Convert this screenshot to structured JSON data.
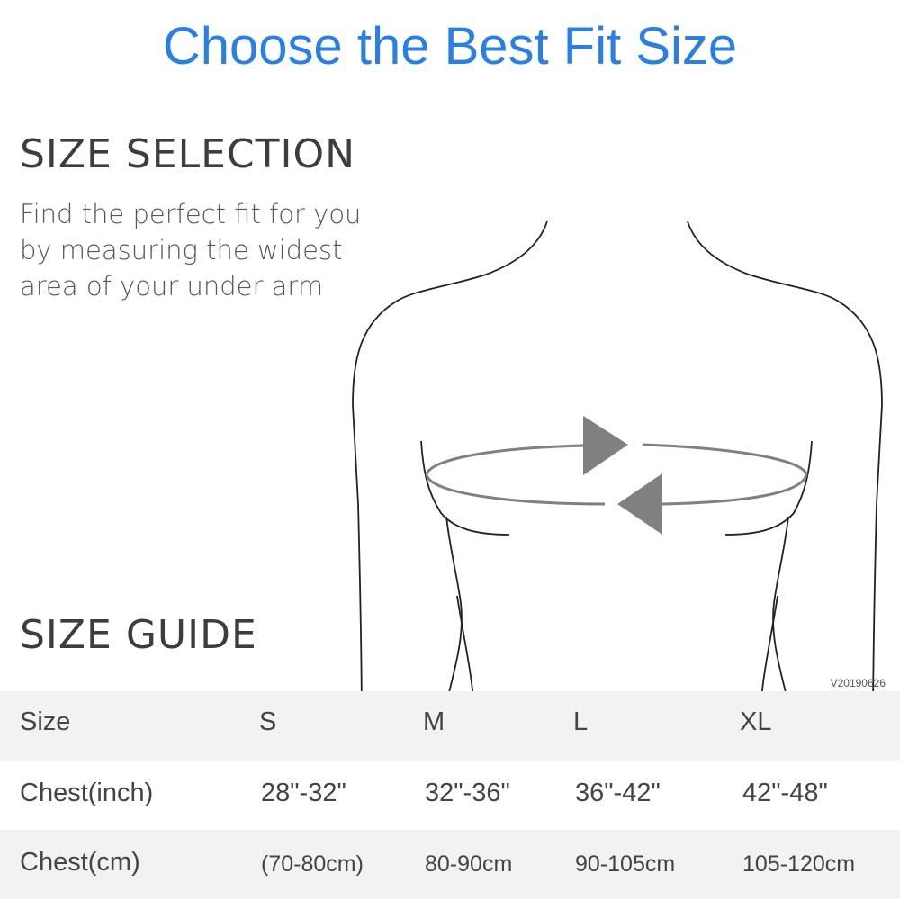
{
  "title": "Choose the Best Fit Size",
  "selection": {
    "heading": "SIZE SELECTION",
    "lines": [
      "Find the perfect fit for you",
      "by measuring the widest",
      "area of your under arm"
    ]
  },
  "guide": {
    "heading": "SIZE GUIDE",
    "version": "V20190626"
  },
  "accent_color": "#2a7fe2",
  "table": {
    "rows": [
      {
        "label": "Size",
        "values": [
          "S",
          "M",
          "L",
          "XL"
        ]
      },
      {
        "label": "Chest(inch)",
        "values": [
          "28\"-32\"",
          "32\"-36\"",
          "36\"-42\"",
          "42\"-48\""
        ]
      },
      {
        "label": "Chest(cm)",
        "values": [
          "(70-80cm)",
          "80-90cm",
          "90-105cm",
          "105-120cm"
        ]
      }
    ]
  }
}
